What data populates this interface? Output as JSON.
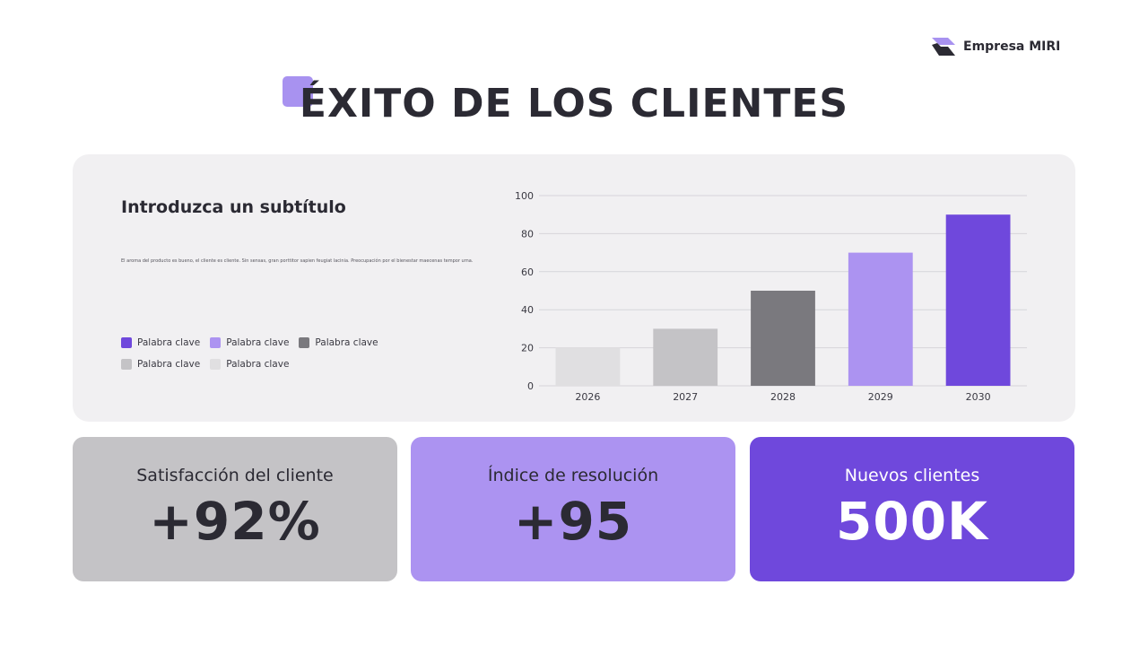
{
  "brand": {
    "name": "Empresa MIRI"
  },
  "title": "ÉXITO DE LOS CLIENTES",
  "panel": {
    "subtitle": "Introduzca un subtítulo",
    "body": "El aroma del producto es bueno, el cliente es cliente. Sin sensas, gran porttitor sapien feugiat lacinia. Preocupación por el bienestar maecenas tempor urna.",
    "legend": [
      {
        "label": "Palabra clave",
        "color": "#6f48dc"
      },
      {
        "label": "Palabra clave",
        "color": "#ac93f1"
      },
      {
        "label": "Palabra clave",
        "color": "#7a797e"
      },
      {
        "label": "Palabra clave",
        "color": "#c4c3c6"
      },
      {
        "label": "Palabra clave",
        "color": "#e0dfe1"
      }
    ]
  },
  "chart_data": {
    "type": "bar",
    "categories": [
      "2026",
      "2027",
      "2028",
      "2029",
      "2030"
    ],
    "values": [
      20,
      30,
      50,
      70,
      90
    ],
    "colors": [
      "#e0dfe1",
      "#c4c3c6",
      "#7a797e",
      "#ac93f1",
      "#6f48dc"
    ],
    "ylim": [
      0,
      100
    ],
    "yticks": [
      0,
      20,
      40,
      60,
      80,
      100
    ],
    "grid": true,
    "title": "",
    "xlabel": "",
    "ylabel": ""
  },
  "stats": [
    {
      "label": "Satisfacción del cliente",
      "value": "+92%",
      "bg": "#c4c3c6",
      "fg": "#2b2a33"
    },
    {
      "label": "Índice de resolución",
      "value": "+95",
      "bg": "#ac93f1",
      "fg": "#2b2a33"
    },
    {
      "label": "Nuevos clientes",
      "value": "500K",
      "bg": "#6f48dc",
      "fg": "#ffffff"
    }
  ]
}
